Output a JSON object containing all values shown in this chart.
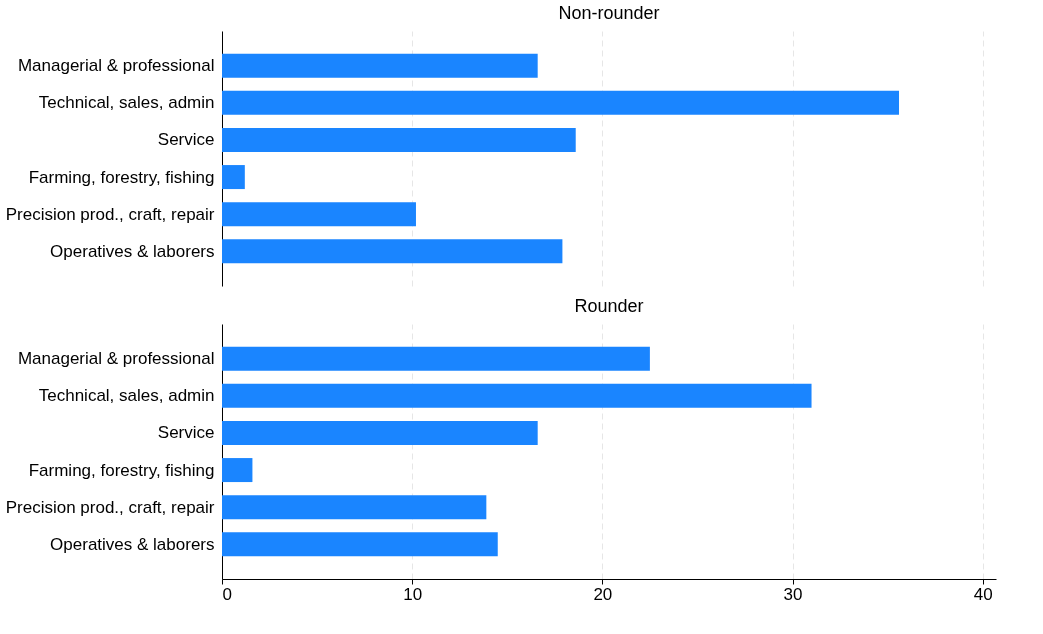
{
  "chart_data": [
    {
      "type": "bar",
      "orientation": "horizontal",
      "title": "Non-rounder",
      "categories": [
        "Managerial & professional",
        "Technical, sales, admin",
        "Service",
        "Farming, forestry, fishing",
        "Precision prod., craft, repair",
        "Operatives & laborers"
      ],
      "values": [
        16.6,
        35.6,
        18.6,
        1.2,
        10.2,
        17.9
      ],
      "color": "#1a85ff",
      "xlim": [
        0,
        40.7
      ],
      "xticks": [
        0,
        10,
        20,
        30,
        40
      ],
      "grid": "x",
      "tick_labels": "y"
    },
    {
      "type": "bar",
      "orientation": "horizontal",
      "title": "Rounder",
      "categories": [
        "Managerial & professional",
        "Technical, sales, admin",
        "Service",
        "Farming, forestry, fishing",
        "Precision prod., craft, repair",
        "Operatives & laborers"
      ],
      "values": [
        22.5,
        31.0,
        16.6,
        1.6,
        13.9,
        14.5
      ],
      "color": "#1a85ff",
      "xlim": [
        0,
        40.7
      ],
      "xticks": [
        0,
        10,
        20,
        30,
        40
      ],
      "grid": "x"
    }
  ]
}
